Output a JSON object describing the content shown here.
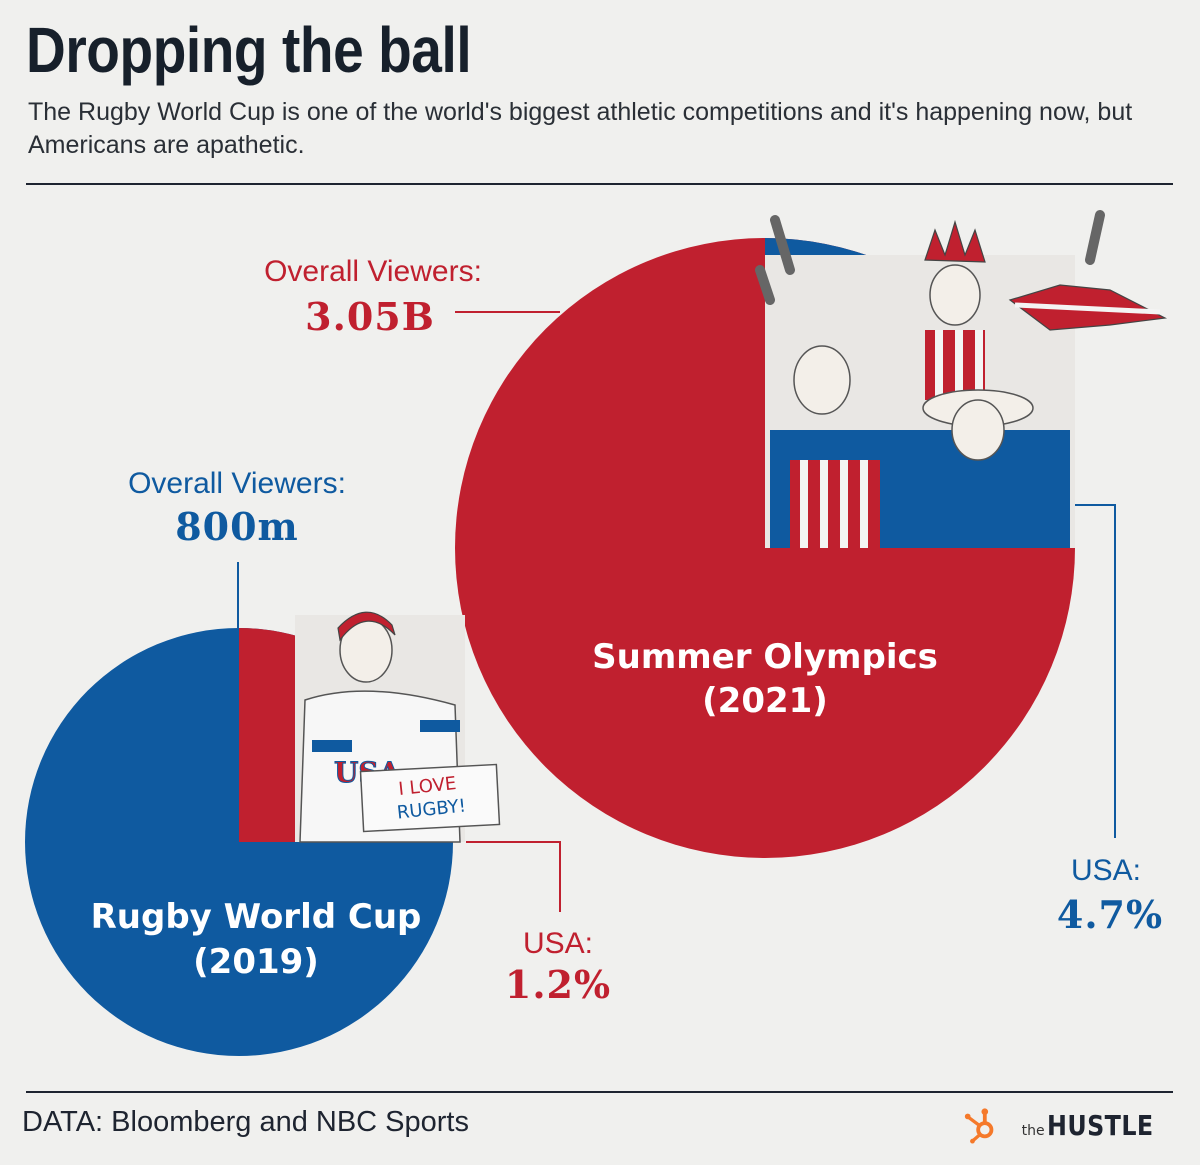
{
  "title": "Dropping the ball",
  "subtitle": "The Rugby World Cup is one of the world's biggest athletic competitions and it's happening now, but Americans are apathetic.",
  "source": "DATA: Bloomberg and NBC Sports",
  "brand": {
    "prefix": "the",
    "name": "HUSTLE",
    "logo_icon": "hubspot-sprocket-icon"
  },
  "colors": {
    "red": "#c0202f",
    "blue": "#0f5aa0",
    "background": "#f0f0ee",
    "text": "#1e2430",
    "brand_orange": "#f5792a"
  },
  "illustrations": {
    "olympics": "cheering-usa-fans-illustration",
    "rugby": "usa-jersey-fan-holding-sign-illustration",
    "sign_text": [
      "I LOVE",
      "RUGBY!"
    ]
  },
  "chart_data": {
    "type": "pie",
    "charts": [
      {
        "event": [
          "Summer Olympics",
          "(2021)"
        ],
        "viewers_label": "Overall Viewers:",
        "viewers_value": "3.05B",
        "viewers_total": 3050000000,
        "usa_label": "USA:",
        "usa_value": "4.7%",
        "usa_share": 4.7,
        "color": "#c0202f",
        "usa_color": "#0f5aa0"
      },
      {
        "event": [
          "Rugby World Cup",
          "(2019)"
        ],
        "viewers_label": "Overall Viewers:",
        "viewers_value": "800m",
        "viewers_total": 800000000,
        "usa_label": "USA:",
        "usa_value": "1.2%",
        "usa_share": 1.2,
        "color": "#0f5aa0",
        "usa_color": "#c0202f"
      }
    ]
  }
}
